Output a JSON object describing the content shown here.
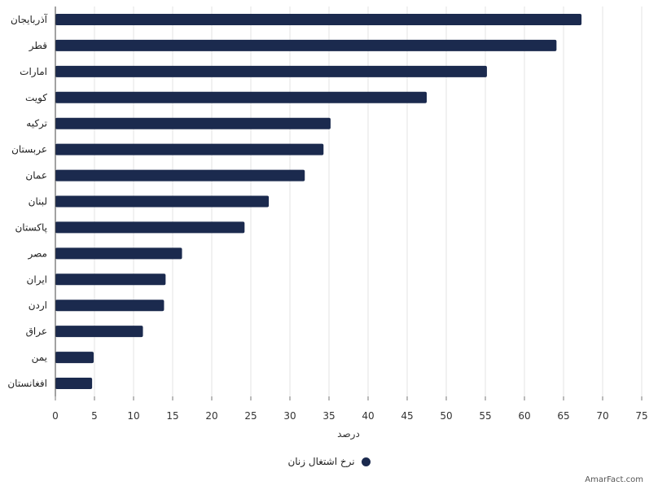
{
  "chart_data": {
    "type": "bar",
    "orientation": "horizontal",
    "categories": [
      "آذربایجان",
      "قطر",
      "امارات",
      "کویت",
      "ترکیه",
      "عربستان",
      "عمان",
      "لبنان",
      "پاکستان",
      "مصر",
      "ایران",
      "اردن",
      "عراق",
      "یمن",
      "افغانستان"
    ],
    "series": [
      {
        "name": "نرخ اشتغال زنان",
        "values": [
          67.3,
          64.1,
          55.2,
          47.5,
          35.2,
          34.3,
          31.9,
          27.3,
          24.2,
          16.2,
          14.1,
          13.9,
          11.2,
          4.9,
          4.7
        ],
        "color": "#1b2a4e"
      }
    ],
    "xlabel": "درصد",
    "xlim": [
      0,
      75
    ],
    "xticks": [
      0,
      5,
      10,
      15,
      20,
      25,
      30,
      35,
      40,
      45,
      50,
      55,
      60,
      65,
      70,
      75
    ],
    "grid": true,
    "legend_position": "bottom"
  },
  "watermark": "AmarFact.com"
}
